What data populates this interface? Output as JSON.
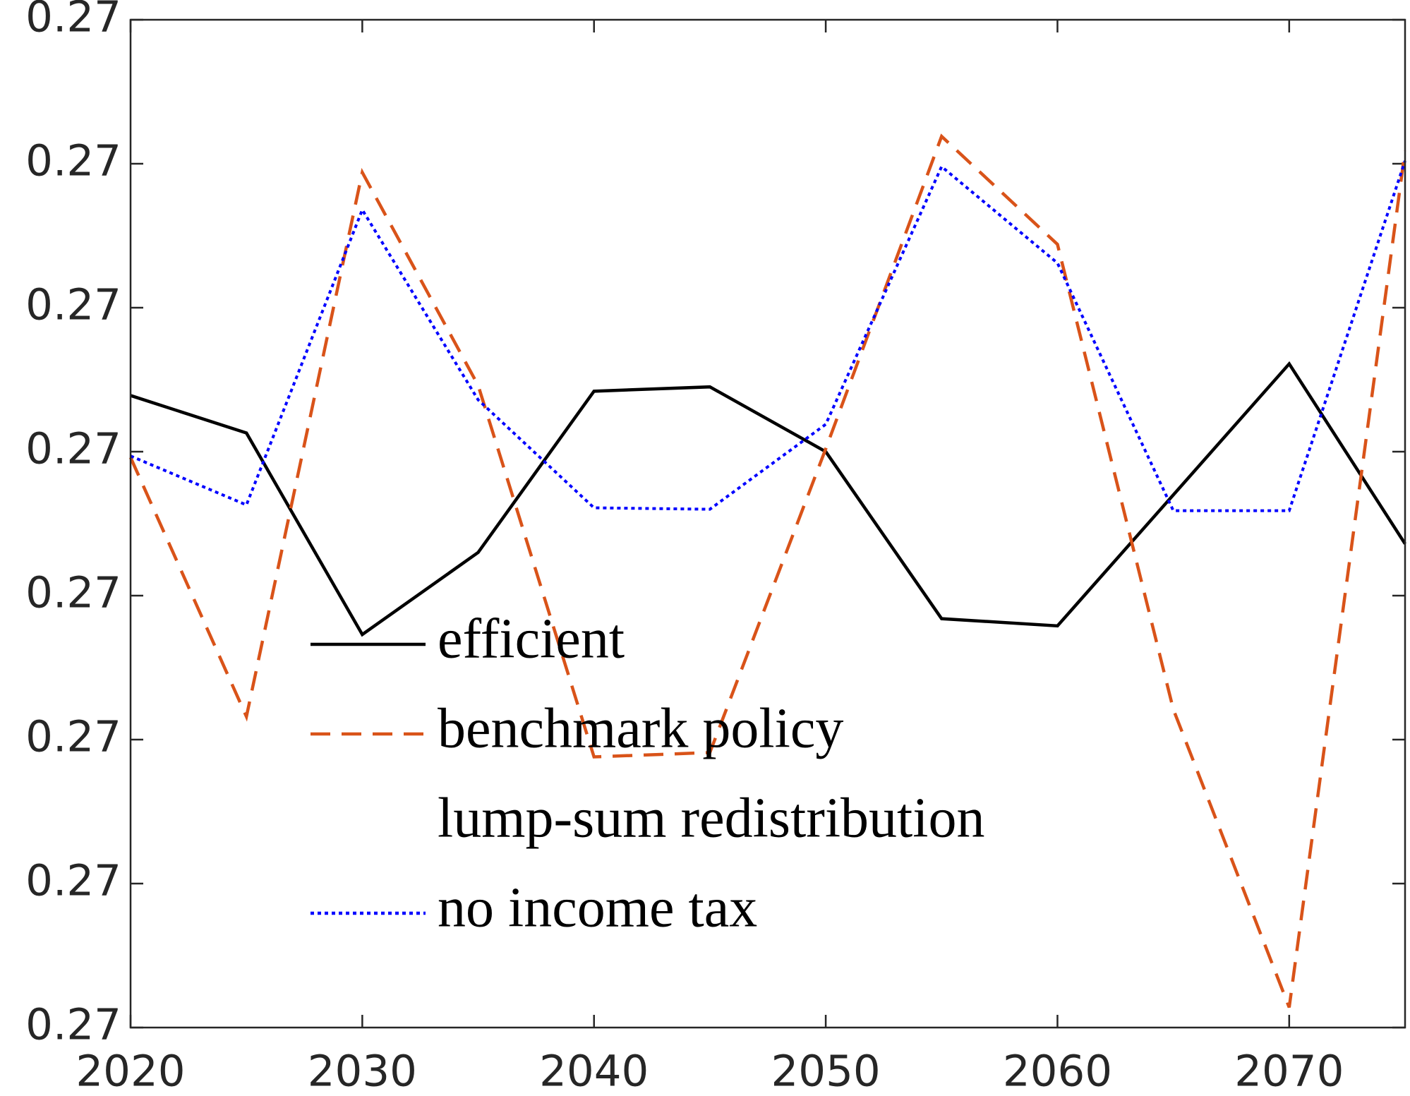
{
  "chart_data": {
    "type": "line",
    "x": [
      2020,
      2025,
      2030,
      2035,
      2040,
      2045,
      2050,
      2055,
      2060,
      2065,
      2070,
      2075
    ],
    "series": [
      {
        "name": "efficient",
        "color": "#000000",
        "dash": "solid",
        "values": [
          0.270439,
          0.270413,
          0.270273,
          0.27033,
          0.270442,
          0.270445,
          0.2704,
          0.270284,
          0.270279,
          0.27037,
          0.270461,
          0.270336
        ]
      },
      {
        "name": "benchmark policy",
        "color": "#d95319",
        "dash": "dashed",
        "values": [
          0.270396,
          0.270216,
          0.270594,
          0.270446,
          0.270188,
          0.270191,
          0.270402,
          0.270619,
          0.270544,
          0.270221,
          0.270014,
          0.270609
        ]
      },
      {
        "name": "lump-sum redistribution",
        "color": "none",
        "dash": "none",
        "values": [
          null,
          null,
          null,
          null,
          null,
          null,
          null,
          null,
          null,
          null,
          null,
          null
        ]
      },
      {
        "name": "no income tax",
        "color": "#0000ff",
        "dash": "dotted",
        "values": [
          0.270397,
          0.270363,
          0.270568,
          0.270436,
          0.270361,
          0.27036,
          0.270419,
          0.270598,
          0.270531,
          0.270359,
          0.270359,
          0.270602
        ]
      }
    ],
    "xlim": [
      2020,
      2075
    ],
    "xticks": [
      2020,
      2030,
      2040,
      2050,
      2060,
      2070
    ],
    "ylim": [
      0.27,
      0.2707
    ],
    "yticks": [
      {
        "value": 0.27,
        "label": "0.27"
      },
      {
        "value": 0.2701,
        "label": "0.27"
      },
      {
        "value": 0.2702,
        "label": "0.27"
      },
      {
        "value": 0.2703,
        "label": "0.27"
      },
      {
        "value": 0.2704,
        "label": "0.27"
      },
      {
        "value": 0.2705,
        "label": "0.27"
      },
      {
        "value": 0.2706,
        "label": "0.27"
      },
      {
        "value": 0.2707,
        "label": "0.27"
      }
    ],
    "grid": false,
    "legend": "center"
  }
}
